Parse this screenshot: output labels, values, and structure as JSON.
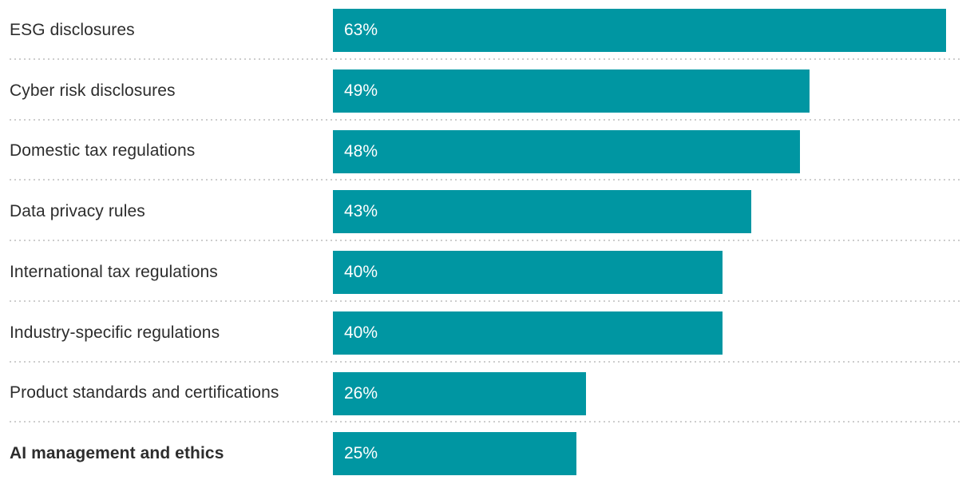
{
  "chart_data": {
    "type": "bar",
    "orientation": "horizontal",
    "title": "",
    "xlabel": "",
    "ylabel": "",
    "unit": "%",
    "xlim": [
      0,
      66
    ],
    "grid": "off",
    "legend": "none",
    "categories": [
      "ESG disclosures",
      "Cyber risk disclosures",
      "Domestic tax regulations",
      "Data privacy rules",
      "International tax regulations",
      "Industry-specific regulations",
      "Product standards and certifications",
      "AI management and ethics"
    ],
    "values": [
      63,
      49,
      48,
      43,
      40,
      40,
      26,
      25
    ],
    "value_labels": [
      "63%",
      "49%",
      "48%",
      "43%",
      "40%",
      "40%",
      "26%",
      "25%"
    ],
    "bold_category_index": 7,
    "colors": {
      "bar": "#0096A2",
      "value_text": "#ffffff",
      "label_text": "#2d2d2d",
      "separator": "#cdcdcd",
      "background": "#ffffff"
    }
  }
}
